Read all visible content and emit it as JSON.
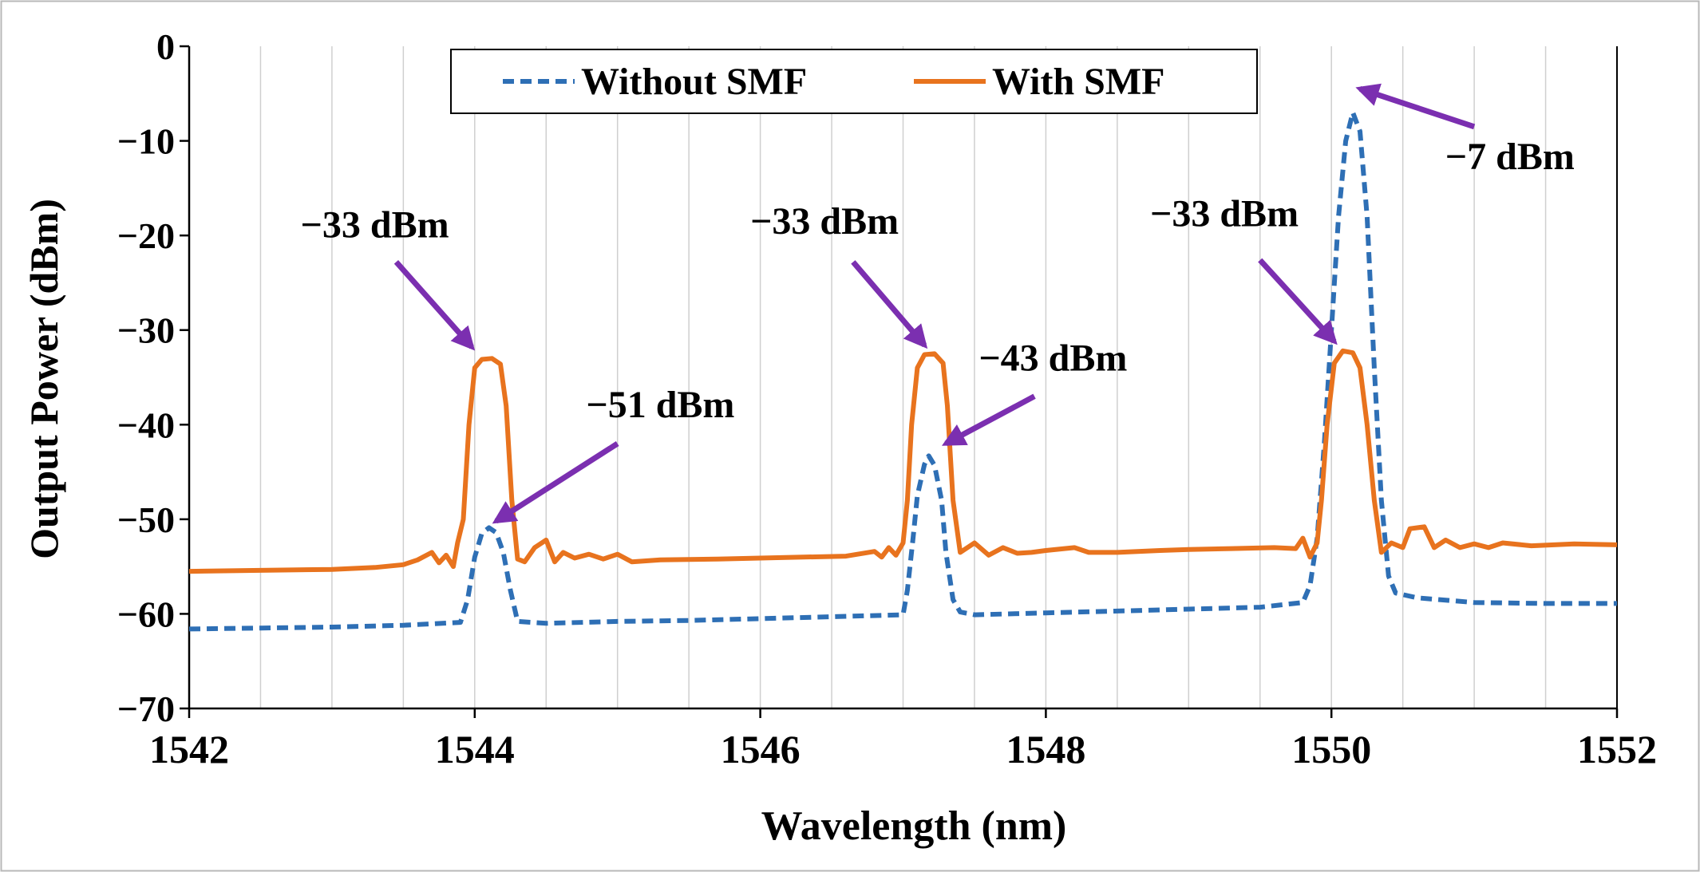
{
  "chart_data": {
    "type": "line",
    "title": "",
    "xlabel": "Wavelength (nm)",
    "ylabel": "Output Power (dBm)",
    "xlim": [
      1542,
      1552
    ],
    "ylim": [
      -70,
      0
    ],
    "x_ticks": [
      1542,
      1544,
      1546,
      1548,
      1550,
      1552
    ],
    "x_tick_labels": [
      "1542",
      "1544",
      "1546",
      "1548",
      "1550",
      "1552"
    ],
    "y_ticks": [
      0,
      -10,
      -20,
      -30,
      -40,
      -50,
      -60,
      -70
    ],
    "y_tick_labels": [
      "0",
      "−10",
      "−20",
      "−30",
      "−40",
      "−50",
      "−60",
      "−70"
    ],
    "grid": "vertical",
    "legend_position": "top-center",
    "series": [
      {
        "name": "Without SMF",
        "color": "#2e6fb5",
        "style": "dashed",
        "points": [
          [
            1542.0,
            -61.6
          ],
          [
            1542.5,
            -61.5
          ],
          [
            1543.0,
            -61.4
          ],
          [
            1543.5,
            -61.2
          ],
          [
            1543.9,
            -60.9
          ],
          [
            1543.95,
            -58.5
          ],
          [
            1544.0,
            -54.0
          ],
          [
            1544.05,
            -51.5
          ],
          [
            1544.1,
            -50.9
          ],
          [
            1544.15,
            -51.4
          ],
          [
            1544.2,
            -53.5
          ],
          [
            1544.25,
            -57.5
          ],
          [
            1544.3,
            -60.8
          ],
          [
            1544.5,
            -61.0
          ],
          [
            1545.0,
            -60.8
          ],
          [
            1545.5,
            -60.7
          ],
          [
            1546.0,
            -60.5
          ],
          [
            1546.5,
            -60.3
          ],
          [
            1547.0,
            -60.1
          ],
          [
            1547.03,
            -57.5
          ],
          [
            1547.07,
            -52.0
          ],
          [
            1547.1,
            -47.5
          ],
          [
            1547.15,
            -44.2
          ],
          [
            1547.18,
            -43.3
          ],
          [
            1547.22,
            -44.3
          ],
          [
            1547.27,
            -48.0
          ],
          [
            1547.3,
            -53.5
          ],
          [
            1547.35,
            -58.5
          ],
          [
            1547.4,
            -59.8
          ],
          [
            1547.5,
            -60.1
          ],
          [
            1548.0,
            -59.9
          ],
          [
            1548.5,
            -59.7
          ],
          [
            1549.0,
            -59.5
          ],
          [
            1549.5,
            -59.3
          ],
          [
            1549.8,
            -58.8
          ],
          [
            1549.85,
            -57.0
          ],
          [
            1549.9,
            -52.0
          ],
          [
            1549.95,
            -42.0
          ],
          [
            1550.0,
            -30.0
          ],
          [
            1550.05,
            -18.0
          ],
          [
            1550.1,
            -10.0
          ],
          [
            1550.15,
            -7.0
          ],
          [
            1550.2,
            -9.0
          ],
          [
            1550.25,
            -18.0
          ],
          [
            1550.3,
            -34.0
          ],
          [
            1550.35,
            -48.0
          ],
          [
            1550.4,
            -56.0
          ],
          [
            1550.45,
            -57.8
          ],
          [
            1550.6,
            -58.3
          ],
          [
            1551.0,
            -58.8
          ],
          [
            1551.5,
            -58.9
          ],
          [
            1552.0,
            -58.9
          ]
        ]
      },
      {
        "name": "With SMF",
        "color": "#e8731e",
        "style": "solid",
        "points": [
          [
            1542.0,
            -55.5
          ],
          [
            1542.5,
            -55.4
          ],
          [
            1543.0,
            -55.3
          ],
          [
            1543.3,
            -55.1
          ],
          [
            1543.5,
            -54.8
          ],
          [
            1543.6,
            -54.3
          ],
          [
            1543.7,
            -53.5
          ],
          [
            1543.75,
            -54.6
          ],
          [
            1543.8,
            -53.8
          ],
          [
            1543.85,
            -55.0
          ],
          [
            1543.88,
            -52.5
          ],
          [
            1543.92,
            -50.0
          ],
          [
            1543.96,
            -40.0
          ],
          [
            1544.0,
            -34.0
          ],
          [
            1544.05,
            -33.1
          ],
          [
            1544.12,
            -33.0
          ],
          [
            1544.18,
            -33.6
          ],
          [
            1544.22,
            -38.0
          ],
          [
            1544.26,
            -48.0
          ],
          [
            1544.3,
            -54.2
          ],
          [
            1544.35,
            -54.5
          ],
          [
            1544.42,
            -53.0
          ],
          [
            1544.5,
            -52.2
          ],
          [
            1544.56,
            -54.5
          ],
          [
            1544.62,
            -53.5
          ],
          [
            1544.7,
            -54.1
          ],
          [
            1544.8,
            -53.7
          ],
          [
            1544.9,
            -54.2
          ],
          [
            1545.0,
            -53.7
          ],
          [
            1545.1,
            -54.5
          ],
          [
            1545.3,
            -54.3
          ],
          [
            1545.7,
            -54.2
          ],
          [
            1546.0,
            -54.1
          ],
          [
            1546.3,
            -54.0
          ],
          [
            1546.6,
            -53.9
          ],
          [
            1546.8,
            -53.4
          ],
          [
            1546.85,
            -54.0
          ],
          [
            1546.9,
            -53.0
          ],
          [
            1546.95,
            -53.8
          ],
          [
            1547.0,
            -52.5
          ],
          [
            1547.03,
            -48.0
          ],
          [
            1547.06,
            -40.0
          ],
          [
            1547.1,
            -34.0
          ],
          [
            1547.15,
            -32.6
          ],
          [
            1547.22,
            -32.5
          ],
          [
            1547.28,
            -33.5
          ],
          [
            1547.31,
            -38.0
          ],
          [
            1547.35,
            -48.0
          ],
          [
            1547.4,
            -53.5
          ],
          [
            1547.5,
            -52.5
          ],
          [
            1547.6,
            -53.8
          ],
          [
            1547.7,
            -53.0
          ],
          [
            1547.8,
            -53.6
          ],
          [
            1547.9,
            -53.5
          ],
          [
            1548.0,
            -53.3
          ],
          [
            1548.2,
            -53.0
          ],
          [
            1548.3,
            -53.5
          ],
          [
            1548.5,
            -53.5
          ],
          [
            1548.8,
            -53.3
          ],
          [
            1549.0,
            -53.2
          ],
          [
            1549.3,
            -53.1
          ],
          [
            1549.6,
            -53.0
          ],
          [
            1549.75,
            -53.1
          ],
          [
            1549.8,
            -52.0
          ],
          [
            1549.85,
            -54.0
          ],
          [
            1549.9,
            -52.5
          ],
          [
            1549.93,
            -48.0
          ],
          [
            1549.97,
            -40.0
          ],
          [
            1550.02,
            -33.5
          ],
          [
            1550.08,
            -32.2
          ],
          [
            1550.15,
            -32.4
          ],
          [
            1550.2,
            -34.0
          ],
          [
            1550.25,
            -40.0
          ],
          [
            1550.3,
            -48.0
          ],
          [
            1550.35,
            -53.5
          ],
          [
            1550.42,
            -52.5
          ],
          [
            1550.5,
            -53.0
          ],
          [
            1550.55,
            -51.0
          ],
          [
            1550.65,
            -50.8
          ],
          [
            1550.72,
            -53.0
          ],
          [
            1550.8,
            -52.2
          ],
          [
            1550.9,
            -53.0
          ],
          [
            1551.0,
            -52.6
          ],
          [
            1551.1,
            -53.0
          ],
          [
            1551.2,
            -52.5
          ],
          [
            1551.4,
            -52.8
          ],
          [
            1551.7,
            -52.6
          ],
          [
            1552.0,
            -52.7
          ]
        ]
      }
    ],
    "annotations": [
      {
        "text": "−33 dBm",
        "label_x": 1543.3,
        "label_y": -20.2,
        "anchor": "middle",
        "arrow_from": [
          1543.45,
          -22.8
        ],
        "arrow_to": [
          1543.98,
          -31.8
        ]
      },
      {
        "text": "−51 dBm",
        "label_x": 1545.3,
        "label_y": -39.2,
        "anchor": "middle",
        "arrow_from": [
          1545.0,
          -42.0
        ],
        "arrow_to": [
          1544.15,
          -50.2
        ]
      },
      {
        "text": "−33 dBm",
        "label_x": 1546.45,
        "label_y": -19.8,
        "anchor": "middle",
        "arrow_from": [
          1546.65,
          -22.8
        ],
        "arrow_to": [
          1547.15,
          -31.6
        ]
      },
      {
        "text": "−43 dBm",
        "label_x": 1548.05,
        "label_y": -34.3,
        "anchor": "middle",
        "arrow_from": [
          1547.92,
          -37.0
        ],
        "arrow_to": [
          1547.3,
          -42.0
        ]
      },
      {
        "text": "−33 dBm",
        "label_x": 1549.25,
        "label_y": -19.0,
        "anchor": "middle",
        "arrow_from": [
          1549.5,
          -22.6
        ],
        "arrow_to": [
          1550.02,
          -31.2
        ]
      },
      {
        "text": "−7 dBm",
        "label_x": 1551.25,
        "label_y": -13.0,
        "anchor": "middle",
        "arrow_from": [
          1551.0,
          -8.5
        ],
        "arrow_to": [
          1550.2,
          -4.5
        ]
      }
    ],
    "annotation_color": "#7b2fb0"
  }
}
